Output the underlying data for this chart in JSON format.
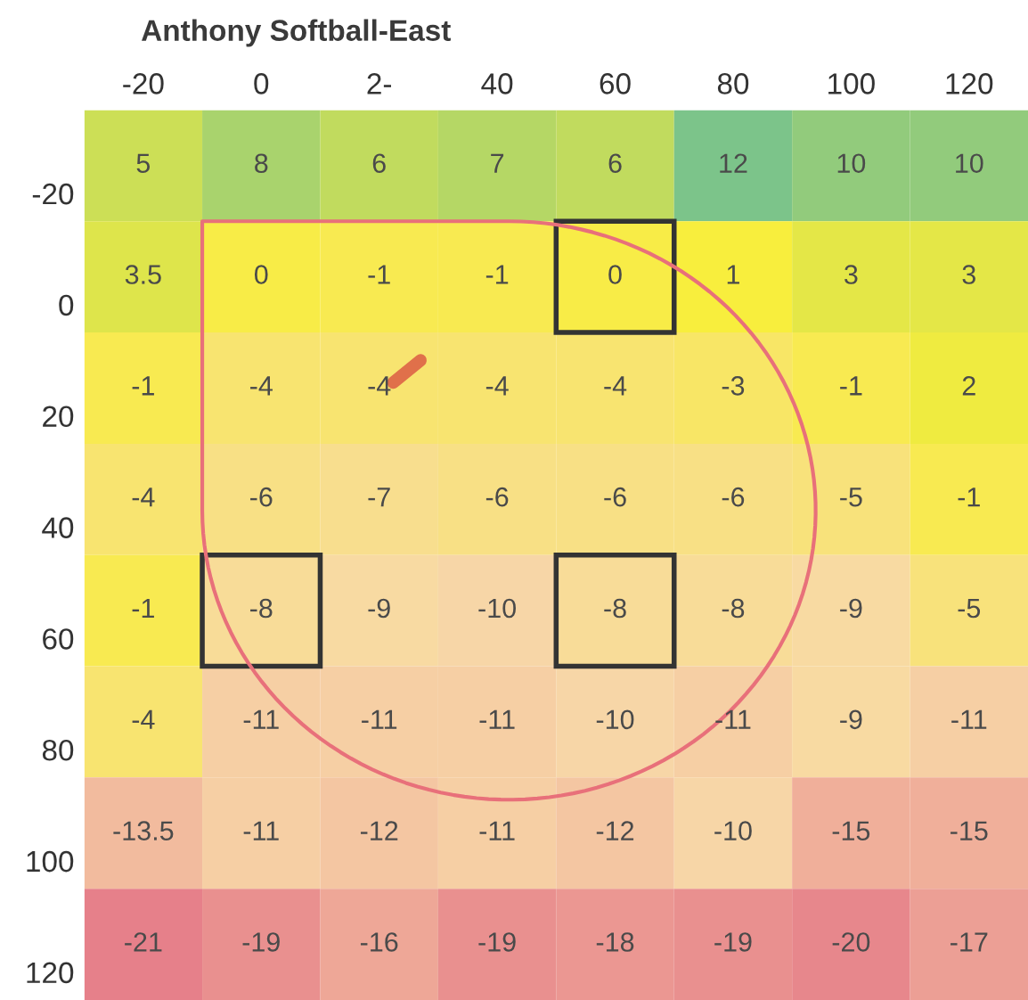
{
  "chart_data": {
    "type": "heatmap",
    "title": "Anthony Softball-East",
    "data_labels": true,
    "categories": [
      "-20",
      "0",
      "2-",
      "40",
      "60",
      "80",
      "100",
      "120"
    ],
    "y_categories": [
      "-20",
      "0",
      "20",
      "40",
      "60",
      "80",
      "100",
      "120"
    ],
    "cells": [
      [
        5,
        8,
        6,
        7,
        6,
        12,
        10,
        10
      ],
      [
        3.5,
        0,
        -1,
        -1,
        0,
        1,
        3,
        3
      ],
      [
        -1,
        -4,
        -4,
        -4,
        -4,
        -3,
        -1,
        2
      ],
      [
        -4,
        -6,
        -7,
        -6,
        -6,
        -6,
        -5,
        -1
      ],
      [
        -1,
        -8,
        -9,
        -10,
        -8,
        -8,
        -9,
        -5
      ],
      [
        -4,
        -11,
        -11,
        -11,
        -10,
        -11,
        -9,
        -11
      ],
      [
        -13.5,
        -11,
        -12,
        -11,
        -12,
        -10,
        -15,
        -15
      ],
      [
        -21,
        -19,
        -16,
        -19,
        -18,
        -19,
        -20,
        -17
      ]
    ]
  }
}
